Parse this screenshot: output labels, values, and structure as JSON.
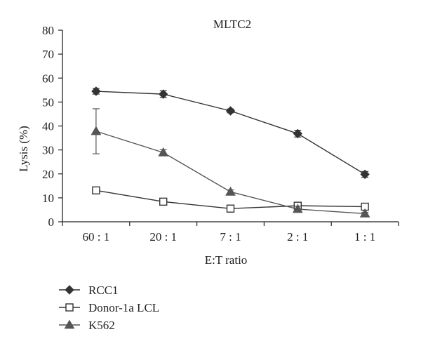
{
  "chart_data": {
    "type": "line",
    "title": "MLTC2",
    "xlabel": "E:T ratio",
    "ylabel": "Lysis (%)",
    "categories": [
      "60 : 1",
      "20 : 1",
      "7 : 1",
      "2 : 1",
      "1 : 1"
    ],
    "ylim": [
      0,
      80
    ],
    "yticks": [
      0,
      10,
      20,
      30,
      40,
      50,
      60,
      70,
      80
    ],
    "grid": false,
    "legend_position": "bottom-left",
    "series": [
      {
        "name": "RCC1",
        "marker": "diamond",
        "color": "#333333",
        "values": [
          54.5,
          53.3,
          46.3,
          36.8,
          19.8
        ],
        "errors": [
          1.2,
          1.4,
          0.8,
          1.4,
          1.2
        ]
      },
      {
        "name": "Donor-1a LCL",
        "marker": "square-open",
        "color": "#333333",
        "values": [
          13.1,
          8.4,
          5.5,
          6.7,
          6.3
        ],
        "errors": [
          0,
          0,
          0,
          1.0,
          0
        ]
      },
      {
        "name": "K562",
        "marker": "triangle",
        "color": "#555555",
        "values": [
          37.8,
          28.9,
          12.5,
          5.3,
          3.4
        ],
        "errors": [
          9.4,
          1.2,
          0.8,
          1.2,
          0.5
        ]
      }
    ]
  }
}
